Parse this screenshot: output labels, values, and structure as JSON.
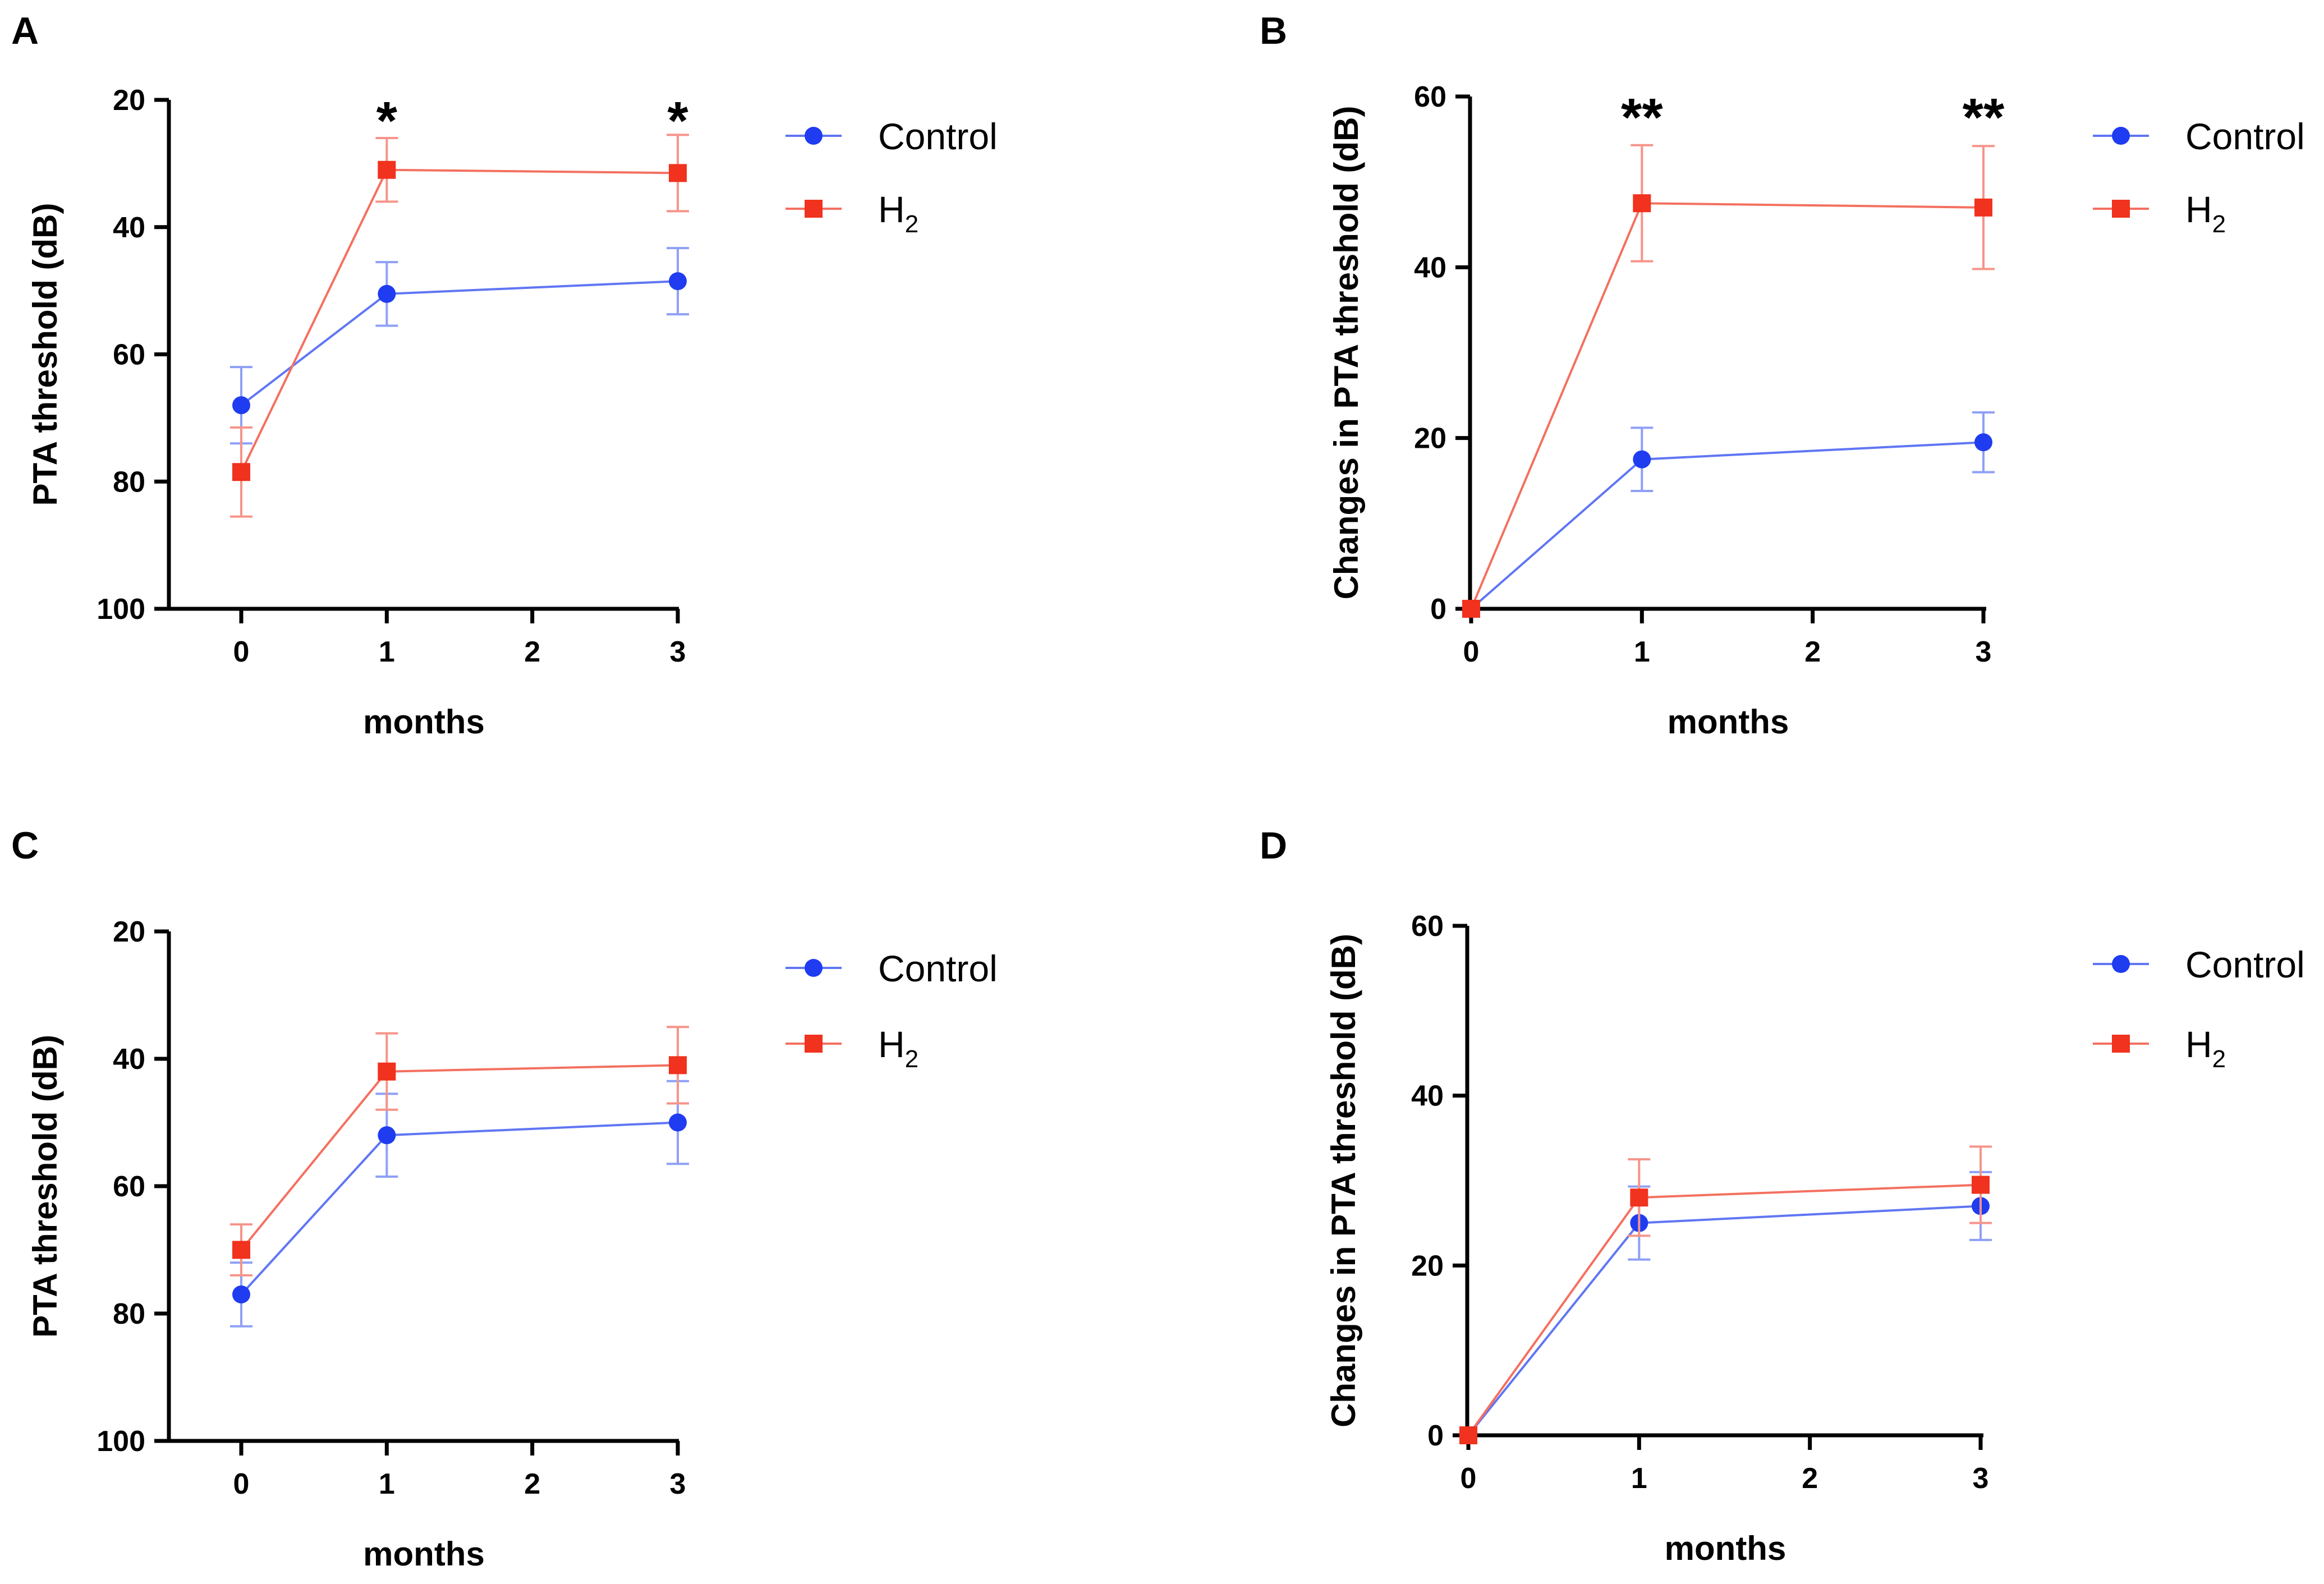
{
  "chart_data": [
    {
      "panel": "A",
      "type": "line",
      "title": "",
      "xlabel": "months",
      "ylabel": "PTA threshold (dB)",
      "ylim": [
        100,
        20
      ],
      "y_inverted": true,
      "xlim": [
        -0.5,
        3
      ],
      "xticks": [
        "0",
        "1",
        "2",
        "3"
      ],
      "yticks": [
        "20",
        "40",
        "60",
        "80",
        "100"
      ],
      "legend_position": "right",
      "series": [
        {
          "name": "Control",
          "marker": "circle",
          "color": "#1f3cf0",
          "x": [
            0,
            1,
            3
          ],
          "values": [
            68,
            50.5,
            48.5
          ],
          "errors": [
            6,
            5,
            5.2
          ]
        },
        {
          "name": "H2",
          "marker": "square",
          "color": "#f0321e",
          "x": [
            0,
            1,
            3
          ],
          "values": [
            78.5,
            31,
            31.5
          ],
          "errors": [
            7,
            5,
            6
          ]
        }
      ],
      "annotations": [
        {
          "x": 1,
          "text": "*"
        },
        {
          "x": 3,
          "text": "*"
        }
      ]
    },
    {
      "panel": "B",
      "type": "line",
      "title": "",
      "xlabel": "months",
      "ylabel": "Changes in PTA threshold (dB)",
      "ylim": [
        0,
        60
      ],
      "y_inverted": false,
      "xlim": [
        0,
        3
      ],
      "xticks": [
        "0",
        "1",
        "2",
        "3"
      ],
      "yticks": [
        "0",
        "20",
        "40",
        "60"
      ],
      "legend_position": "right",
      "series": [
        {
          "name": "Control",
          "marker": "circle",
          "color": "#1f3cf0",
          "x": [
            0,
            1,
            3
          ],
          "values": [
            0,
            17.5,
            19.5
          ],
          "errors": [
            0,
            3.7,
            3.5
          ]
        },
        {
          "name": "H2",
          "marker": "square",
          "color": "#f0321e",
          "x": [
            0,
            1,
            3
          ],
          "values": [
            0,
            47.5,
            47
          ],
          "errors": [
            0,
            6.8,
            7.2
          ]
        }
      ],
      "annotations": [
        {
          "x": 1,
          "text": "**"
        },
        {
          "x": 3,
          "text": "**"
        }
      ]
    },
    {
      "panel": "C",
      "type": "line",
      "title": "",
      "xlabel": "months",
      "ylabel": "PTA threshold (dB)",
      "ylim": [
        100,
        20
      ],
      "y_inverted": true,
      "xlim": [
        -0.5,
        3
      ],
      "xticks": [
        "0",
        "1",
        "2",
        "3"
      ],
      "yticks": [
        "20",
        "40",
        "60",
        "80",
        "100"
      ],
      "legend_position": "right",
      "series": [
        {
          "name": "Control",
          "marker": "circle",
          "color": "#1f3cf0",
          "x": [
            0,
            1,
            3
          ],
          "values": [
            77,
            52,
            50
          ],
          "errors": [
            5,
            6.5,
            6.5
          ]
        },
        {
          "name": "H2",
          "marker": "square",
          "color": "#f0321e",
          "x": [
            0,
            1,
            3
          ],
          "values": [
            70,
            42,
            41
          ],
          "errors": [
            4,
            6,
            6
          ]
        }
      ],
      "annotations": []
    },
    {
      "panel": "D",
      "type": "line",
      "title": "",
      "xlabel": "months",
      "ylabel": "Changes in PTA threshold (dB)",
      "ylim": [
        0,
        60
      ],
      "y_inverted": false,
      "xlim": [
        0,
        3
      ],
      "xticks": [
        "0",
        "1",
        "2",
        "3"
      ],
      "yticks": [
        "0",
        "20",
        "40",
        "60"
      ],
      "legend_position": "right",
      "series": [
        {
          "name": "Control",
          "marker": "circle",
          "color": "#1f3cf0",
          "x": [
            0,
            1,
            3
          ],
          "values": [
            0,
            25,
            27
          ],
          "errors": [
            0,
            4.3,
            4
          ]
        },
        {
          "name": "H2",
          "marker": "square",
          "color": "#f0321e",
          "x": [
            0,
            1,
            3
          ],
          "values": [
            0,
            28,
            29.5
          ],
          "errors": [
            0,
            4.5,
            4.5
          ]
        }
      ],
      "annotations": []
    }
  ]
}
